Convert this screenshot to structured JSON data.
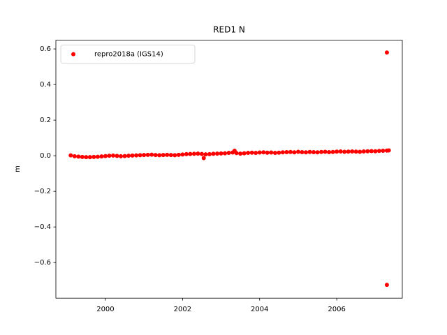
{
  "chart_data": {
    "type": "scatter",
    "title": "RED1 N",
    "ylabel": "m",
    "x": [
      1999.1,
      1999.2,
      1999.3,
      1999.4,
      1999.5,
      1999.6,
      1999.7,
      1999.8,
      1999.9,
      2000.0,
      2000.1,
      2000.2,
      2000.3,
      2000.4,
      2000.5,
      2000.6,
      2000.7,
      2000.8,
      2000.9,
      2001.0,
      2001.1,
      2001.2,
      2001.3,
      2001.4,
      2001.5,
      2001.6,
      2001.7,
      2001.8,
      2001.9,
      2002.0,
      2002.1,
      2002.2,
      2002.3,
      2002.4,
      2002.5,
      2002.6,
      2002.7,
      2002.8,
      2002.9,
      2003.0,
      2003.1,
      2003.2,
      2003.3,
      2003.4,
      2003.5,
      2003.6,
      2003.7,
      2003.8,
      2003.9,
      2004.0,
      2004.1,
      2004.2,
      2004.3,
      2004.4,
      2004.5,
      2004.6,
      2004.7,
      2004.8,
      2004.9,
      2005.0,
      2005.1,
      2005.2,
      2005.3,
      2005.4,
      2005.5,
      2005.6,
      2005.7,
      2005.8,
      2005.9,
      2006.0,
      2006.1,
      2006.2,
      2006.3,
      2006.4,
      2006.5,
      2006.6,
      2006.7,
      2006.8,
      2006.9,
      2007.0,
      2007.1,
      2007.2,
      2007.3,
      2002.55,
      2003.35,
      2007.3,
      2007.3,
      2007.35
    ],
    "series": [
      {
        "name": "repro2018a (IGS14)",
        "color": "#ff0000",
        "values": [
          0.002,
          -0.003,
          -0.005,
          -0.007,
          -0.008,
          -0.008,
          -0.007,
          -0.006,
          -0.004,
          -0.002,
          0.0,
          0.001,
          -0.001,
          -0.003,
          -0.002,
          0.0,
          0.001,
          0.002,
          0.003,
          0.004,
          0.005,
          0.006,
          0.004,
          0.003,
          0.004,
          0.005,
          0.004,
          0.003,
          0.005,
          0.007,
          0.009,
          0.01,
          0.011,
          0.012,
          0.01,
          0.008,
          0.009,
          0.011,
          0.012,
          0.013,
          0.014,
          0.016,
          0.018,
          0.015,
          0.012,
          0.014,
          0.016,
          0.017,
          0.016,
          0.018,
          0.019,
          0.017,
          0.018,
          0.016,
          0.017,
          0.019,
          0.02,
          0.021,
          0.019,
          0.022,
          0.02,
          0.019,
          0.021,
          0.02,
          0.019,
          0.021,
          0.022,
          0.02,
          0.021,
          0.023,
          0.024,
          0.022,
          0.023,
          0.024,
          0.023,
          0.022,
          0.024,
          0.025,
          0.026,
          0.025,
          0.027,
          0.028,
          0.029,
          -0.013,
          0.028,
          0.58,
          -0.725,
          0.03
        ]
      }
    ],
    "xlim": [
      1998.715,
      2007.7
    ],
    "ylim": [
      -0.8,
      0.649
    ],
    "xticks": [
      2000,
      2002,
      2004,
      2006
    ],
    "yticks": [
      {
        "value": -0.6,
        "label": "−0.6"
      },
      {
        "value": -0.4,
        "label": "−0.4"
      },
      {
        "value": -0.2,
        "label": "−0.2"
      },
      {
        "value": 0,
        "label": "0.0"
      },
      0.2,
      0.4,
      0.6
    ],
    "legend": "upper left"
  }
}
